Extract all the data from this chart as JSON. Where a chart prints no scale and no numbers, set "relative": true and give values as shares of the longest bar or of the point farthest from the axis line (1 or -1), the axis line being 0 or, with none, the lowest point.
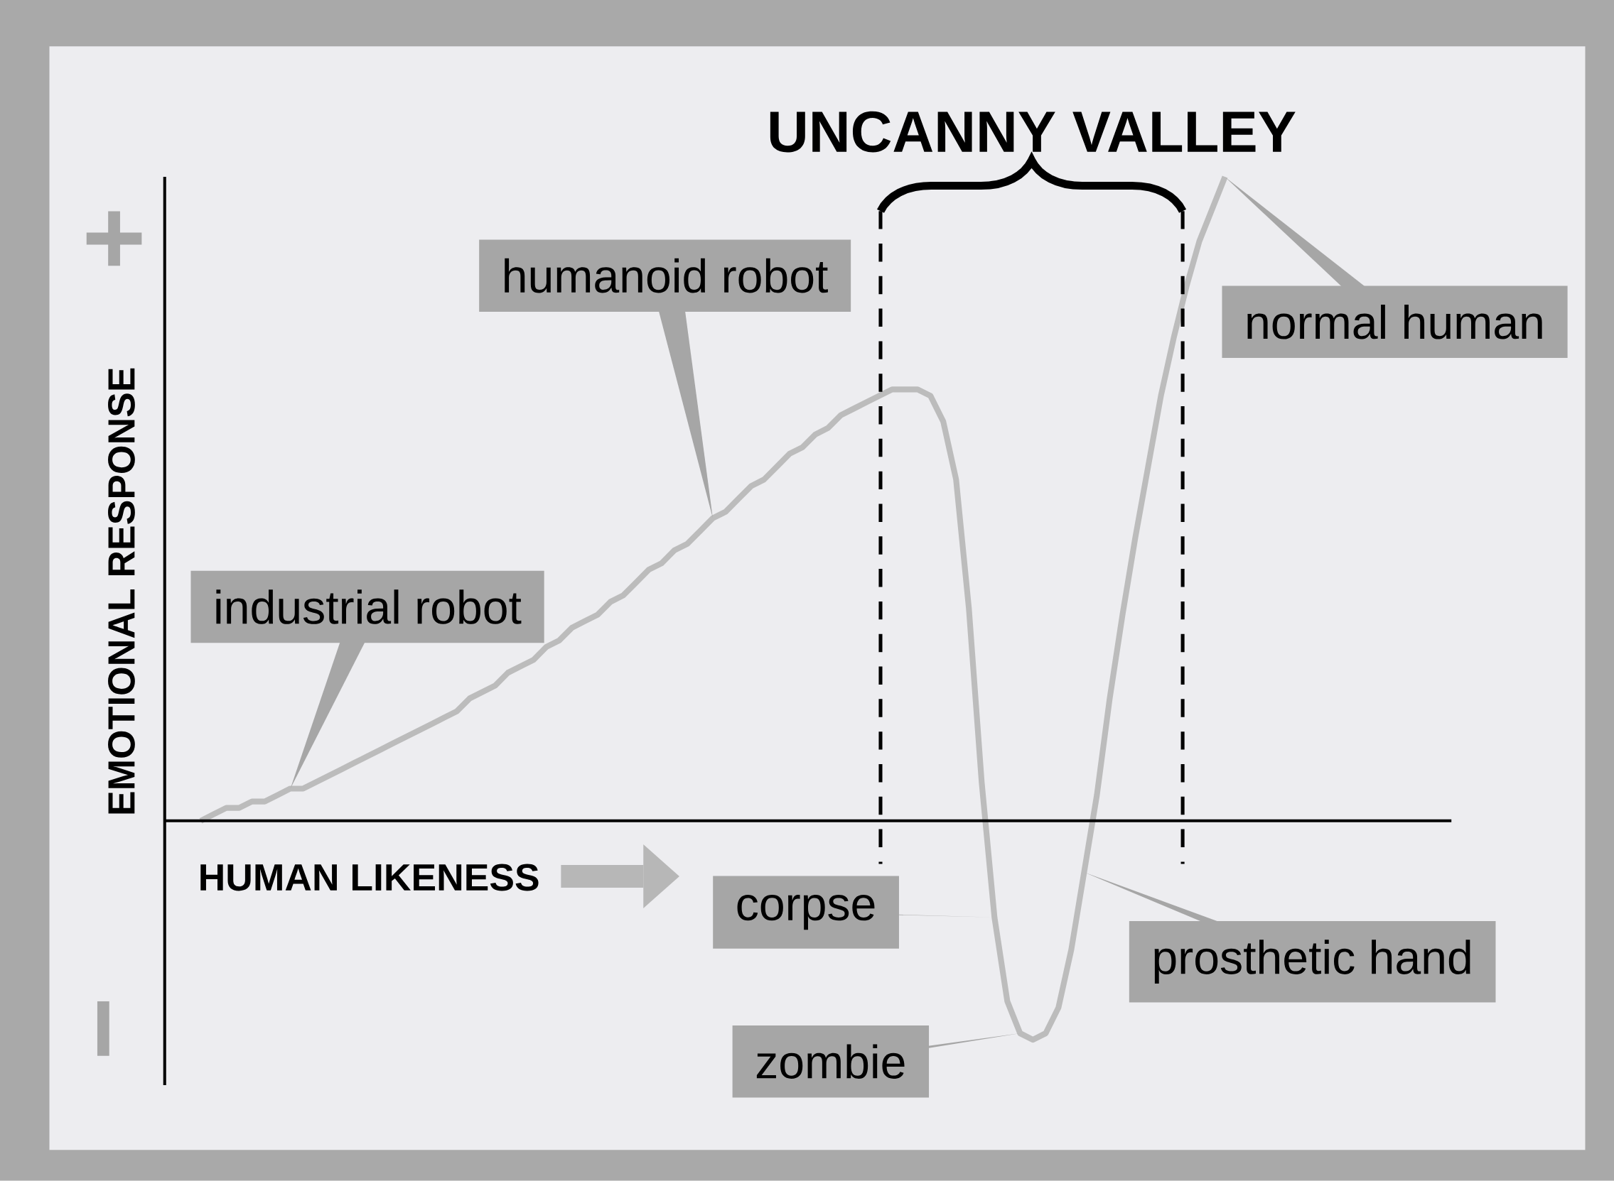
{
  "chart_data": {
    "type": "line",
    "relative": true,
    "title": "UNCANNY VALLEY",
    "xlabel": "HUMAN LIKENESS",
    "ylabel": "EMOTIONAL RESPONSE",
    "categories": [
      null,
      null,
      null,
      null,
      null,
      null,
      null,
      null,
      null,
      null,
      null,
      null,
      null,
      null,
      null,
      null,
      null,
      null,
      null,
      null,
      null,
      null,
      null,
      null,
      null,
      null,
      null,
      null,
      null,
      null,
      null,
      null,
      null,
      null,
      null,
      null,
      null,
      null,
      null,
      null,
      null,
      null,
      null,
      null,
      null,
      null,
      null,
      null,
      null,
      null,
      null,
      null,
      null,
      null,
      null,
      null,
      null,
      null,
      null,
      null,
      null,
      null,
      null,
      null,
      null,
      null,
      null,
      null,
      null,
      null,
      null,
      null,
      null,
      null,
      null,
      null,
      null,
      null,
      null,
      null,
      null
    ],
    "values": [
      0.0,
      0.01,
      0.02,
      0.02,
      0.03,
      0.03,
      0.04,
      0.05,
      0.05,
      0.06,
      0.07,
      0.08,
      0.09,
      0.1,
      0.11,
      0.12,
      0.13,
      0.14,
      0.15,
      0.16,
      0.17,
      0.19,
      0.2,
      0.21,
      0.23,
      0.24,
      0.25,
      0.27,
      0.28,
      0.3,
      0.31,
      0.32,
      0.34,
      0.35,
      0.37,
      0.39,
      0.4,
      0.42,
      0.43,
      0.45,
      0.47,
      0.48,
      0.5,
      0.52,
      0.53,
      0.55,
      0.57,
      0.58,
      0.6,
      0.61,
      0.63,
      0.64,
      0.65,
      0.66,
      0.67,
      0.67,
      0.67,
      0.66,
      0.62,
      0.53,
      0.33,
      0.06,
      -0.15,
      -0.28,
      -0.33,
      -0.34,
      -0.33,
      -0.29,
      -0.2,
      -0.08,
      0.04,
      0.19,
      0.32,
      0.44,
      0.55,
      0.66,
      0.75,
      0.83,
      0.9,
      0.95,
      1.0
    ],
    "color": "#bcbcbc",
    "line_style": "solid",
    "marker": "none",
    "annotations": [
      "industrial robot",
      "humanoid robot",
      "normal human",
      "corpse",
      "zombie",
      "prosthetic hand",
      "+",
      "−"
    ]
  }
}
